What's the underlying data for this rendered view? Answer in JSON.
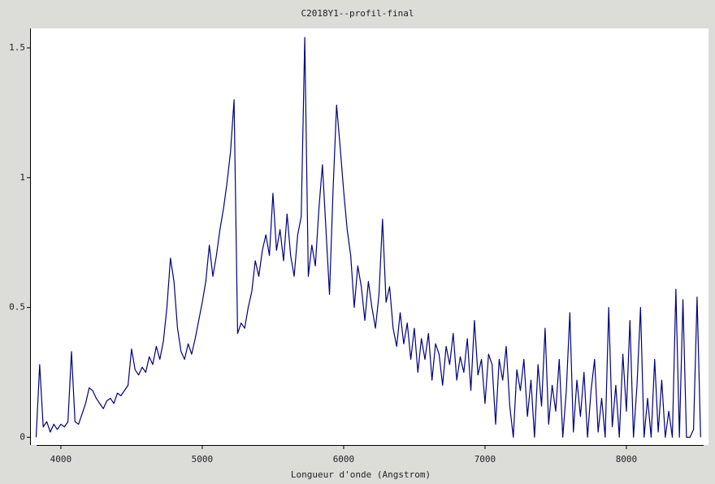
{
  "chart_data": {
    "type": "line",
    "title": "C2018Y1--profil-final",
    "x_label": "Longueur d'onde (Angstrom)",
    "xlim": [
      3828,
      8529
    ],
    "ylim": [
      -0.03,
      1.55
    ],
    "xticks": [
      4000,
      5000,
      6000,
      7000,
      8000
    ],
    "yticks": [
      0,
      {
        "value": 0.5,
        "label": "0.5"
      },
      1,
      {
        "value": 1.5,
        "label": "1.5"
      }
    ],
    "x": [
      3825,
      3850,
      3875,
      3900,
      3925,
      3950,
      3975,
      4000,
      4025,
      4050,
      4075,
      4100,
      4125,
      4150,
      4175,
      4200,
      4225,
      4250,
      4275,
      4300,
      4325,
      4350,
      4375,
      4400,
      4425,
      4450,
      4475,
      4500,
      4525,
      4550,
      4575,
      4600,
      4625,
      4650,
      4675,
      4700,
      4725,
      4750,
      4775,
      4800,
      4825,
      4850,
      4875,
      4900,
      4925,
      4950,
      4975,
      5000,
      5025,
      5050,
      5075,
      5100,
      5125,
      5150,
      5175,
      5200,
      5225,
      5250,
      5275,
      5300,
      5325,
      5350,
      5375,
      5400,
      5425,
      5450,
      5475,
      5500,
      5525,
      5550,
      5575,
      5600,
      5625,
      5650,
      5675,
      5700,
      5725,
      5750,
      5775,
      5800,
      5825,
      5850,
      5875,
      5900,
      5925,
      5950,
      5975,
      6000,
      6025,
      6050,
      6075,
      6100,
      6125,
      6150,
      6175,
      6200,
      6225,
      6250,
      6275,
      6300,
      6325,
      6350,
      6375,
      6400,
      6425,
      6450,
      6475,
      6500,
      6525,
      6550,
      6575,
      6600,
      6625,
      6650,
      6675,
      6700,
      6725,
      6750,
      6775,
      6800,
      6825,
      6850,
      6875,
      6900,
      6925,
      6950,
      6975,
      7000,
      7025,
      7050,
      7075,
      7100,
      7125,
      7150,
      7175,
      7200,
      7225,
      7250,
      7275,
      7300,
      7325,
      7350,
      7375,
      7400,
      7425,
      7450,
      7475,
      7500,
      7525,
      7550,
      7575,
      7600,
      7625,
      7650,
      7675,
      7700,
      7725,
      7750,
      7775,
      7800,
      7825,
      7850,
      7875,
      7900,
      7925,
      7950,
      7975,
      8000,
      8025,
      8050,
      8075,
      8100,
      8125,
      8150,
      8175,
      8200,
      8225,
      8250,
      8275,
      8300,
      8325,
      8350,
      8375,
      8400,
      8425,
      8450,
      8475,
      8500,
      8525
    ],
    "series": [
      {
        "color": "#000080",
        "values": [
          0.0,
          0.28,
          0.04,
          0.06,
          0.02,
          0.05,
          0.03,
          0.05,
          0.04,
          0.06,
          0.33,
          0.06,
          0.05,
          0.09,
          0.13,
          0.19,
          0.18,
          0.15,
          0.13,
          0.11,
          0.14,
          0.15,
          0.13,
          0.17,
          0.16,
          0.18,
          0.2,
          0.34,
          0.26,
          0.24,
          0.27,
          0.25,
          0.31,
          0.28,
          0.35,
          0.3,
          0.37,
          0.5,
          0.69,
          0.6,
          0.42,
          0.33,
          0.3,
          0.36,
          0.32,
          0.38,
          0.45,
          0.52,
          0.6,
          0.74,
          0.62,
          0.7,
          0.8,
          0.88,
          0.98,
          1.1,
          1.3,
          0.4,
          0.44,
          0.42,
          0.5,
          0.56,
          0.68,
          0.62,
          0.72,
          0.78,
          0.7,
          0.94,
          0.72,
          0.8,
          0.68,
          0.86,
          0.7,
          0.62,
          0.78,
          0.85,
          1.54,
          0.62,
          0.74,
          0.66,
          0.88,
          1.05,
          0.8,
          0.55,
          0.95,
          1.28,
          1.12,
          0.95,
          0.8,
          0.7,
          0.5,
          0.66,
          0.58,
          0.45,
          0.6,
          0.5,
          0.42,
          0.55,
          0.84,
          0.52,
          0.58,
          0.42,
          0.35,
          0.48,
          0.36,
          0.44,
          0.3,
          0.42,
          0.25,
          0.38,
          0.3,
          0.4,
          0.22,
          0.36,
          0.32,
          0.2,
          0.35,
          0.28,
          0.4,
          0.22,
          0.31,
          0.25,
          0.38,
          0.18,
          0.45,
          0.24,
          0.3,
          0.13,
          0.32,
          0.28,
          0.05,
          0.3,
          0.22,
          0.35,
          0.12,
          0.0,
          0.26,
          0.18,
          0.3,
          0.08,
          0.22,
          0.0,
          0.28,
          0.12,
          0.42,
          0.05,
          0.2,
          0.1,
          0.3,
          0.0,
          0.18,
          0.48,
          0.02,
          0.22,
          0.08,
          0.25,
          0.0,
          0.18,
          0.3,
          0.02,
          0.15,
          0.0,
          0.5,
          0.04,
          0.2,
          0.0,
          0.32,
          0.1,
          0.45,
          0.0,
          0.2,
          0.5,
          0.0,
          0.15,
          0.0,
          0.3,
          0.02,
          0.22,
          0.0,
          0.1,
          0.0,
          0.57,
          0.0,
          0.53,
          0.0,
          0.0,
          0.03,
          0.54,
          0.0
        ]
      }
    ]
  }
}
